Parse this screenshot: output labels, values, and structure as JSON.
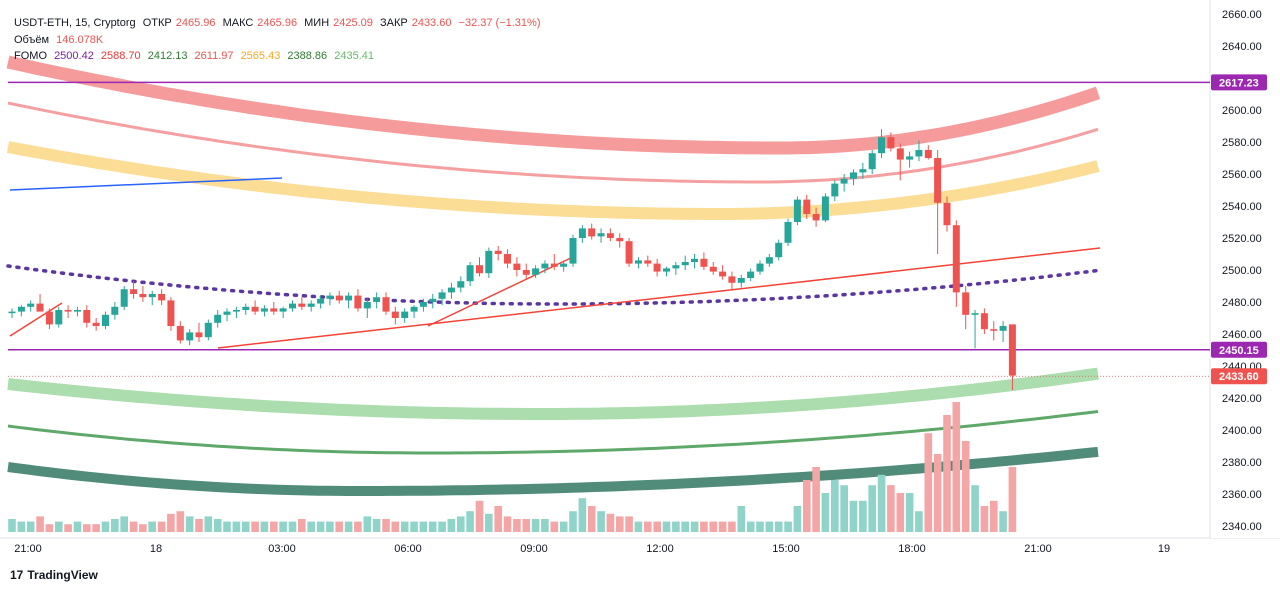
{
  "header": {
    "symbol": "USDT-ETH, 15, Cryptorg",
    "open_label": "ОТКР",
    "open": "2465.96",
    "high_label": "МАКС",
    "high": "2465.96",
    "low_label": "МИН",
    "low": "2425.09",
    "close_label": "ЗАКР",
    "close": "2433.60",
    "change": "−32.37 (−1.31%)"
  },
  "volume": {
    "label": "Объём",
    "value": "146.078K"
  },
  "indicator": {
    "name": "FOMO",
    "values": [
      "2500.42",
      "2588.70",
      "2412.13",
      "2611.97",
      "2565.43",
      "2388.86",
      "2435.41"
    ]
  },
  "branding": {
    "name": "TradingView"
  },
  "chart_data": {
    "type": "candlestick",
    "y_axis_ticks": [
      2340,
      2360,
      2380,
      2400,
      2420,
      2440,
      2460,
      2480,
      2500,
      2520,
      2540,
      2560,
      2580,
      2600,
      2620,
      2640,
      2660
    ],
    "ylim": [
      2335,
      2662
    ],
    "x_axis_ticks": [
      "21:00",
      "18",
      "03:00",
      "06:00",
      "09:00",
      "12:00",
      "15:00",
      "18:00",
      "21:00",
      "19"
    ],
    "price_labels": [
      {
        "value": "2617.23",
        "color": "#9c27b0"
      },
      {
        "value": "2450.15",
        "color": "#9c27b0"
      },
      {
        "value": "2433.60",
        "color": "#ef5350"
      }
    ],
    "horizontal_levels": [
      2617.23,
      2450.15
    ],
    "candles": [
      [
        2473,
        2476,
        2470,
        2474
      ],
      [
        2474,
        2478,
        2471,
        2477
      ],
      [
        2477,
        2481,
        2474,
        2479
      ],
      [
        2479,
        2485,
        2475,
        2474
      ],
      [
        2474,
        2476,
        2463,
        2466
      ],
      [
        2466,
        2477,
        2464,
        2475
      ],
      [
        2475,
        2478,
        2470,
        2474
      ],
      [
        2474,
        2477,
        2471,
        2475
      ],
      [
        2475,
        2478,
        2464,
        2467
      ],
      [
        2467,
        2470,
        2462,
        2465
      ],
      [
        2465,
        2474,
        2463,
        2472
      ],
      [
        2472,
        2480,
        2469,
        2477
      ],
      [
        2477,
        2490,
        2475,
        2488
      ],
      [
        2488,
        2493,
        2482,
        2485
      ],
      [
        2485,
        2490,
        2480,
        2483
      ],
      [
        2483,
        2487,
        2478,
        2485
      ],
      [
        2485,
        2488,
        2478,
        2481
      ],
      [
        2481,
        2483,
        2462,
        2465
      ],
      [
        2465,
        2468,
        2454,
        2456
      ],
      [
        2456,
        2463,
        2453,
        2461
      ],
      [
        2461,
        2467,
        2455,
        2458
      ],
      [
        2458,
        2469,
        2456,
        2467
      ],
      [
        2467,
        2475,
        2464,
        2472
      ],
      [
        2472,
        2476,
        2468,
        2474
      ],
      [
        2474,
        2477,
        2470,
        2475
      ],
      [
        2475,
        2479,
        2472,
        2477
      ],
      [
        2477,
        2481,
        2472,
        2474
      ],
      [
        2474,
        2478,
        2471,
        2476
      ],
      [
        2476,
        2480,
        2472,
        2474
      ],
      [
        2474,
        2477,
        2470,
        2476
      ],
      [
        2476,
        2481,
        2474,
        2479
      ],
      [
        2479,
        2483,
        2475,
        2477
      ],
      [
        2477,
        2481,
        2474,
        2479
      ],
      [
        2479,
        2484,
        2476,
        2482
      ],
      [
        2482,
        2486,
        2478,
        2484
      ],
      [
        2484,
        2487,
        2479,
        2481
      ],
      [
        2481,
        2486,
        2476,
        2484
      ],
      [
        2484,
        2488,
        2474,
        2476
      ],
      [
        2476,
        2482,
        2470,
        2480
      ],
      [
        2480,
        2486,
        2476,
        2483
      ],
      [
        2483,
        2486,
        2472,
        2474
      ],
      [
        2474,
        2477,
        2466,
        2470
      ],
      [
        2470,
        2476,
        2467,
        2474
      ],
      [
        2474,
        2478,
        2470,
        2477
      ],
      [
        2477,
        2482,
        2474,
        2480
      ],
      [
        2480,
        2485,
        2476,
        2482
      ],
      [
        2482,
        2488,
        2478,
        2486
      ],
      [
        2486,
        2492,
        2482,
        2489
      ],
      [
        2489,
        2496,
        2486,
        2493
      ],
      [
        2493,
        2505,
        2490,
        2503
      ],
      [
        2503,
        2508,
        2496,
        2498
      ],
      [
        2498,
        2514,
        2495,
        2512
      ],
      [
        2512,
        2515,
        2506,
        2510
      ],
      [
        2510,
        2513,
        2501,
        2504
      ],
      [
        2504,
        2508,
        2496,
        2500
      ],
      [
        2500,
        2504,
        2494,
        2497
      ],
      [
        2497,
        2503,
        2495,
        2501
      ],
      [
        2501,
        2506,
        2498,
        2504
      ],
      [
        2504,
        2510,
        2500,
        2502
      ],
      [
        2502,
        2506,
        2499,
        2504
      ],
      [
        2504,
        2522,
        2502,
        2520
      ],
      [
        2520,
        2528,
        2517,
        2526
      ],
      [
        2526,
        2529,
        2519,
        2521
      ],
      [
        2521,
        2526,
        2517,
        2523
      ],
      [
        2523,
        2526,
        2518,
        2520
      ],
      [
        2520,
        2523,
        2514,
        2518
      ],
      [
        2518,
        2520,
        2502,
        2504
      ],
      [
        2504,
        2508,
        2501,
        2506
      ],
      [
        2506,
        2509,
        2502,
        2504
      ],
      [
        2504,
        2507,
        2496,
        2499
      ],
      [
        2499,
        2502,
        2496,
        2501
      ],
      [
        2501,
        2505,
        2497,
        2503
      ],
      [
        2503,
        2509,
        2500,
        2505
      ],
      [
        2505,
        2510,
        2501,
        2507
      ],
      [
        2507,
        2511,
        2500,
        2502
      ],
      [
        2502,
        2505,
        2497,
        2499
      ],
      [
        2499,
        2503,
        2494,
        2496
      ],
      [
        2496,
        2499,
        2487,
        2492
      ],
      [
        2492,
        2497,
        2489,
        2495
      ],
      [
        2495,
        2501,
        2493,
        2499
      ],
      [
        2499,
        2506,
        2497,
        2504
      ],
      [
        2504,
        2510,
        2502,
        2508
      ],
      [
        2508,
        2519,
        2506,
        2517
      ],
      [
        2517,
        2532,
        2515,
        2530
      ],
      [
        2530,
        2546,
        2528,
        2544
      ],
      [
        2544,
        2547,
        2532,
        2535
      ],
      [
        2535,
        2539,
        2527,
        2531
      ],
      [
        2531,
        2548,
        2530,
        2546
      ],
      [
        2546,
        2556,
        2543,
        2554
      ],
      [
        2554,
        2560,
        2549,
        2557
      ],
      [
        2557,
        2563,
        2553,
        2561
      ],
      [
        2561,
        2567,
        2557,
        2563
      ],
      [
        2563,
        2575,
        2560,
        2573
      ],
      [
        2573,
        2588,
        2570,
        2583
      ],
      [
        2583,
        2586,
        2574,
        2576
      ],
      [
        2576,
        2579,
        2556,
        2569
      ],
      [
        2569,
        2574,
        2564,
        2571
      ],
      [
        2571,
        2581,
        2568,
        2575
      ],
      [
        2575,
        2578,
        2569,
        2570
      ],
      [
        2570,
        2575,
        2510,
        2542
      ],
      [
        2542,
        2546,
        2524,
        2528
      ],
      [
        2528,
        2531,
        2477,
        2486
      ],
      [
        2486,
        2490,
        2463,
        2472
      ],
      [
        2472,
        2475,
        2451,
        2473
      ],
      [
        2473,
        2476,
        2460,
        2463
      ],
      [
        2463,
        2468,
        2456,
        2462
      ],
      [
        2462,
        2468,
        2455,
        2465
      ],
      [
        2466,
        2466,
        2425,
        2434
      ]
    ],
    "volume_bars": [
      5,
      4,
      4,
      6,
      3,
      4,
      3,
      4,
      3,
      3,
      4,
      5,
      6,
      4,
      3,
      4,
      4,
      7,
      8,
      6,
      5,
      6,
      5,
      4,
      4,
      4,
      4,
      4,
      4,
      4,
      4,
      5,
      4,
      4,
      4,
      4,
      4,
      4,
      6,
      5,
      5,
      4,
      4,
      4,
      4,
      4,
      4,
      5,
      6,
      8,
      12,
      7,
      10,
      6,
      5,
      5,
      5,
      5,
      4,
      4,
      8,
      13,
      10,
      8,
      7,
      6,
      6,
      4,
      4,
      4,
      4,
      4,
      4,
      4,
      4,
      4,
      4,
      4,
      10,
      4,
      4,
      4,
      4,
      4,
      10,
      20,
      25,
      15,
      20,
      18,
      12,
      12,
      18,
      22,
      18,
      15,
      15,
      8,
      38,
      30,
      45,
      50,
      35,
      18,
      10,
      12,
      8,
      25
    ]
  }
}
